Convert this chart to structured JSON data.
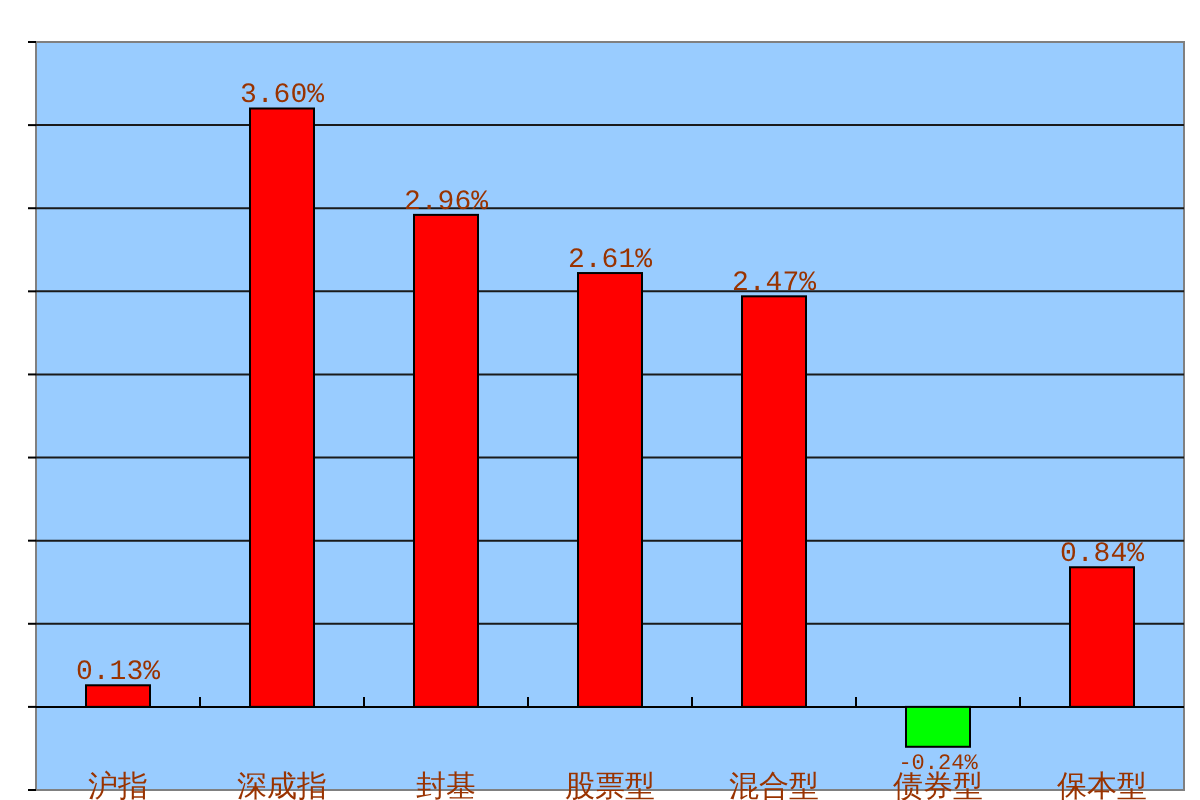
{
  "chart_data": {
    "type": "bar",
    "categories": [
      "沪指",
      "深成指",
      "封基",
      "股票型",
      "混合型",
      "债券型",
      "保本型"
    ],
    "values": [
      0.13,
      3.6,
      2.96,
      2.61,
      2.47,
      -0.24,
      0.84
    ],
    "colors": [
      "#ff0000",
      "#ff0000",
      "#ff0000",
      "#ff0000",
      "#ff0000",
      "#00ff00",
      "#ff0000"
    ],
    "value_labels": [
      "0.13%",
      "3.60%",
      "2.96%",
      "2.61%",
      "2.47%",
      "-0.24%",
      "0.84%"
    ],
    "ylim": [
      -0.5,
      4
    ],
    "yticks": [
      {
        "value": -0.5,
        "label": null
      },
      {
        "value": 0,
        "label": null
      },
      {
        "value": 0.5,
        "label": null
      },
      {
        "value": 1,
        "label": null
      },
      {
        "value": 1.5,
        "label": null
      },
      {
        "value": 2,
        "label": null
      },
      {
        "value": 2.5,
        "label": null
      },
      {
        "value": 3,
        "label": null
      },
      {
        "value": 3.5,
        "label": null
      },
      {
        "value": 4,
        "label": null
      }
    ],
    "grid": "y"
  }
}
